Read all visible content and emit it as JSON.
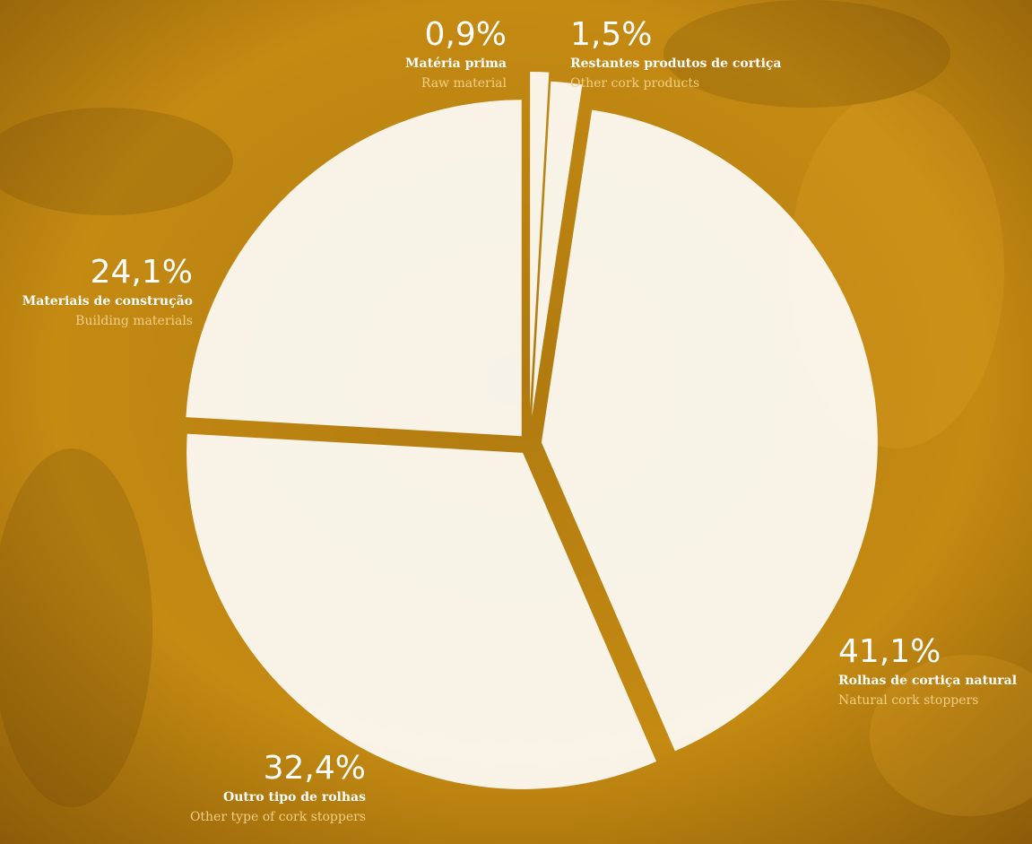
{
  "chart_data": {
    "type": "pie",
    "categories": [
      "Matéria prima",
      "Restantes produtos de cortiça",
      "Rolhas de cortiça natural",
      "Outro tipo de rolhas",
      "Materiais de construção"
    ],
    "translations": [
      "Raw material",
      "Other cork products",
      "Natural cork stoppers",
      "Other type of cork stoppers",
      "Building materials"
    ],
    "values": [
      0.9,
      1.5,
      41.1,
      32.4,
      24.1
    ],
    "value_labels": [
      "0,9%",
      "1,5%",
      "41,1%",
      "32,4%",
      "24,1%"
    ],
    "color": "#ffffff"
  }
}
